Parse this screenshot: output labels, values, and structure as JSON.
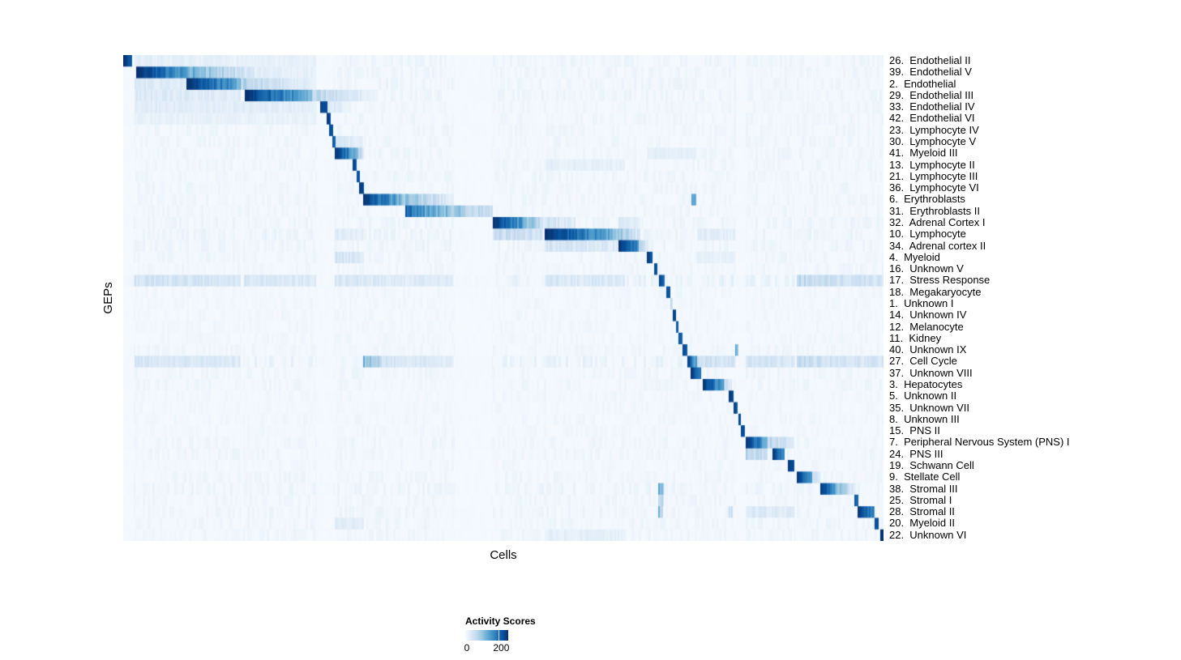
{
  "chart_data": {
    "type": "heatmap",
    "title": "",
    "xlabel": "Cells",
    "ylabel": "GEPs",
    "grid": false,
    "colorbar": {
      "title": "Activity Scores",
      "tick_labels": [
        "0",
        "200"
      ],
      "tick_values": [
        0,
        200
      ],
      "value_range": [
        0,
        250
      ],
      "position": "bottom-left"
    },
    "colormap_name": "Blues",
    "colormap_stops": [
      "#f7fbff",
      "#deebf7",
      "#c6dbef",
      "#9ecae1",
      "#6baed6",
      "#4292c6",
      "#2171b5",
      "#08519c",
      "#08306b"
    ],
    "noise_bands": [
      [
        0.014,
        0.085
      ],
      [
        0.085,
        0.154
      ],
      [
        0.158,
        0.254
      ],
      [
        0.278,
        0.316
      ],
      [
        0.316,
        0.435
      ],
      [
        0.486,
        0.554
      ],
      [
        0.554,
        0.66
      ],
      [
        0.652,
        0.691
      ],
      [
        0.69,
        0.755
      ],
      [
        0.755,
        0.805
      ],
      [
        0.819,
        0.883
      ],
      [
        0.886,
        0.964
      ],
      [
        0.964,
        1.0
      ]
    ],
    "rows": [
      {
        "label": "26.  Endothelial II",
        "noise": 0.06,
        "segments": [
          [
            0.0,
            0.011,
            1.0,
            0.8
          ],
          [
            0.014,
            0.254,
            0.08,
            0.06
          ]
        ]
      },
      {
        "label": "39.  Endothelial V",
        "noise": 0.06,
        "segments": [
          [
            0.017,
            0.085,
            1.0,
            0.55
          ],
          [
            0.085,
            0.171,
            0.5,
            0.12
          ],
          [
            0.171,
            0.254,
            0.1,
            0.07
          ]
        ]
      },
      {
        "label": "2.  Endothelial",
        "noise": 0.06,
        "segments": [
          [
            0.014,
            0.083,
            0.13,
            0.11
          ],
          [
            0.083,
            0.154,
            1.0,
            0.5
          ],
          [
            0.154,
            0.254,
            0.3,
            0.07
          ]
        ]
      },
      {
        "label": "29.  Endothelial III",
        "noise": 0.06,
        "segments": [
          [
            0.014,
            0.154,
            0.12,
            0.1
          ],
          [
            0.16,
            0.248,
            1.0,
            0.45
          ],
          [
            0.248,
            0.332,
            0.28,
            0.05
          ]
        ]
      },
      {
        "label": "33.  Endothelial IV",
        "noise": 0.05,
        "segments": [
          [
            0.014,
            0.254,
            0.1,
            0.09
          ],
          [
            0.259,
            0.268,
            0.95,
            0.85
          ],
          [
            0.268,
            0.3,
            0.15,
            0.05
          ]
        ]
      },
      {
        "label": "42.  Endothelial VI",
        "noise": 0.05,
        "segments": [
          [
            0.014,
            0.254,
            0.07,
            0.06
          ],
          [
            0.267,
            0.273,
            0.95,
            0.9
          ]
        ]
      },
      {
        "label": "23.  Lymphocyte IV",
        "noise": 0.05,
        "segments": [
          [
            0.271,
            0.276,
            0.9,
            0.85
          ]
        ]
      },
      {
        "label": "30.  Lymphocyte V",
        "noise": 0.05,
        "segments": [
          [
            0.275,
            0.279,
            0.85,
            0.8
          ],
          [
            0.279,
            0.315,
            0.15,
            0.08
          ]
        ]
      },
      {
        "label": "41.  Myeloid III",
        "noise": 0.05,
        "segments": [
          [
            0.278,
            0.304,
            1.0,
            0.55
          ],
          [
            0.304,
            0.316,
            0.5,
            0.12
          ],
          [
            0.69,
            0.755,
            0.09,
            0.07
          ]
        ]
      },
      {
        "label": "13.  Lymphocyte II",
        "noise": 0.05,
        "segments": [
          [
            0.302,
            0.307,
            0.9,
            0.85
          ],
          [
            0.554,
            0.66,
            0.08,
            0.07
          ]
        ]
      },
      {
        "label": "21.  Lymphocyte III",
        "noise": 0.05,
        "segments": [
          [
            0.307,
            0.311,
            0.9,
            0.85
          ]
        ]
      },
      {
        "label": "36.  Lymphocyte VI",
        "noise": 0.05,
        "segments": [
          [
            0.31,
            0.316,
            0.95,
            0.9
          ]
        ]
      },
      {
        "label": "6.  Erythroblasts",
        "noise": 0.05,
        "segments": [
          [
            0.315,
            0.362,
            1.0,
            0.5
          ],
          [
            0.362,
            0.435,
            0.45,
            0.08
          ],
          [
            0.748,
            0.754,
            0.55,
            0.5
          ]
        ]
      },
      {
        "label": "31.  Erythroblasts II",
        "noise": 0.05,
        "segments": [
          [
            0.371,
            0.39,
            0.8,
            0.65
          ],
          [
            0.39,
            0.486,
            0.6,
            0.18
          ]
        ]
      },
      {
        "label": "32.  Adrenal Cortex I",
        "noise": 0.06,
        "segments": [
          [
            0.486,
            0.526,
            1.0,
            0.55
          ],
          [
            0.526,
            0.554,
            0.5,
            0.15
          ],
          [
            0.554,
            0.595,
            0.18,
            0.1
          ],
          [
            0.652,
            0.68,
            0.12,
            0.08
          ]
        ]
      },
      {
        "label": "10.  Lymphocyte",
        "noise": 0.07,
        "segments": [
          [
            0.278,
            0.316,
            0.1,
            0.08
          ],
          [
            0.486,
            0.552,
            0.22,
            0.18
          ],
          [
            0.554,
            0.643,
            1.0,
            0.5
          ],
          [
            0.643,
            0.68,
            0.45,
            0.12
          ],
          [
            0.755,
            0.805,
            0.1,
            0.08
          ]
        ]
      },
      {
        "label": "34.  Adrenal cortex II",
        "noise": 0.06,
        "segments": [
          [
            0.554,
            0.65,
            0.16,
            0.12
          ],
          [
            0.652,
            0.678,
            1.0,
            0.6
          ],
          [
            0.678,
            0.691,
            0.4,
            0.1
          ]
        ]
      },
      {
        "label": "4.  Myeloid",
        "noise": 0.05,
        "segments": [
          [
            0.278,
            0.316,
            0.18,
            0.12
          ],
          [
            0.689,
            0.696,
            0.95,
            0.85
          ],
          [
            0.755,
            0.805,
            0.08,
            0.06
          ]
        ]
      },
      {
        "label": "16.  Unknown V",
        "noise": 0.05,
        "segments": [
          [
            0.698,
            0.703,
            0.9,
            0.85
          ]
        ]
      },
      {
        "label": "17.  Stress Response",
        "noise": 0.1,
        "segments": [
          [
            0.014,
            0.154,
            0.18,
            0.15
          ],
          [
            0.158,
            0.254,
            0.14,
            0.12
          ],
          [
            0.278,
            0.316,
            0.15,
            0.12
          ],
          [
            0.315,
            0.435,
            0.12,
            0.1
          ],
          [
            0.554,
            0.66,
            0.14,
            0.12
          ],
          [
            0.705,
            0.712,
            0.95,
            0.75
          ],
          [
            0.886,
            0.964,
            0.25,
            0.18
          ],
          [
            0.964,
            1.0,
            0.18,
            0.15
          ]
        ]
      },
      {
        "label": "18.  Megakaryocyte",
        "noise": 0.04,
        "segments": [
          [
            0.714,
            0.72,
            0.9,
            0.85
          ]
        ]
      },
      {
        "label": "1.  Unknown I",
        "noise": 0.04,
        "segments": [
          [
            0.72,
            0.723,
            0.3,
            0.2
          ]
        ]
      },
      {
        "label": "14.  Unknown IV",
        "noise": 0.04,
        "segments": [
          [
            0.723,
            0.727,
            0.9,
            0.85
          ]
        ]
      },
      {
        "label": "12.  Melanocyte",
        "noise": 0.04,
        "segments": [
          [
            0.727,
            0.731,
            0.85,
            0.8
          ]
        ]
      },
      {
        "label": "11.  Kidney",
        "noise": 0.04,
        "segments": [
          [
            0.731,
            0.736,
            0.85,
            0.8
          ]
        ]
      },
      {
        "label": "40.  Unknown IX",
        "noise": 0.05,
        "segments": [
          [
            0.736,
            0.742,
            0.95,
            0.7
          ],
          [
            0.805,
            0.81,
            0.5,
            0.4
          ]
        ]
      },
      {
        "label": "27.  Cell Cycle",
        "noise": 0.09,
        "segments": [
          [
            0.014,
            0.154,
            0.15,
            0.12
          ],
          [
            0.315,
            0.34,
            0.45,
            0.25
          ],
          [
            0.34,
            0.435,
            0.15,
            0.1
          ],
          [
            0.742,
            0.755,
            1.0,
            0.45
          ],
          [
            0.755,
            0.805,
            0.2,
            0.15
          ],
          [
            0.819,
            0.883,
            0.18,
            0.14
          ],
          [
            0.886,
            0.964,
            0.22,
            0.16
          ],
          [
            0.964,
            1.0,
            0.18,
            0.14
          ]
        ]
      },
      {
        "label": "37.  Unknown VIII",
        "noise": 0.05,
        "segments": [
          [
            0.747,
            0.76,
            1.0,
            0.7
          ]
        ]
      },
      {
        "label": "3.  Hepatocytes",
        "noise": 0.05,
        "segments": [
          [
            0.763,
            0.79,
            1.0,
            0.5
          ],
          [
            0.79,
            0.801,
            0.3,
            0.1
          ]
        ]
      },
      {
        "label": "5.  Unknown II",
        "noise": 0.04,
        "segments": [
          [
            0.797,
            0.803,
            0.95,
            0.85
          ]
        ]
      },
      {
        "label": "35.  Unknown VII",
        "noise": 0.04,
        "segments": [
          [
            0.803,
            0.808,
            0.9,
            0.85
          ]
        ]
      },
      {
        "label": "8.  Unknown III",
        "noise": 0.04,
        "segments": [
          [
            0.81,
            0.813,
            0.9,
            0.85
          ]
        ]
      },
      {
        "label": "15.  PNS II",
        "noise": 0.04,
        "segments": [
          [
            0.813,
            0.818,
            0.9,
            0.85
          ]
        ]
      },
      {
        "label": "7.  Peripheral Nervous System (PNS) I",
        "noise": 0.05,
        "segments": [
          [
            0.819,
            0.848,
            1.0,
            0.5
          ],
          [
            0.848,
            0.883,
            0.3,
            0.15
          ]
        ]
      },
      {
        "label": "24.  PNS III",
        "noise": 0.05,
        "segments": [
          [
            0.819,
            0.848,
            0.3,
            0.2
          ],
          [
            0.854,
            0.87,
            1.0,
            0.6
          ]
        ]
      },
      {
        "label": "19.  Schwann Cell",
        "noise": 0.04,
        "segments": [
          [
            0.875,
            0.883,
            0.95,
            0.85
          ]
        ]
      },
      {
        "label": "9.  Stellate Cell",
        "noise": 0.05,
        "segments": [
          [
            0.886,
            0.907,
            1.0,
            0.55
          ],
          [
            0.907,
            0.917,
            0.3,
            0.1
          ]
        ]
      },
      {
        "label": "38.  Stromal III",
        "noise": 0.06,
        "segments": [
          [
            0.704,
            0.711,
            0.45,
            0.4
          ],
          [
            0.917,
            0.933,
            1.0,
            0.7
          ],
          [
            0.933,
            0.957,
            0.6,
            0.2
          ],
          [
            0.957,
            0.964,
            0.15,
            0.1
          ]
        ]
      },
      {
        "label": "25.  Stromal I",
        "noise": 0.05,
        "segments": [
          [
            0.704,
            0.711,
            0.3,
            0.25
          ],
          [
            0.962,
            0.967,
            0.9,
            0.8
          ]
        ]
      },
      {
        "label": "28.  Stromal II",
        "noise": 0.06,
        "segments": [
          [
            0.704,
            0.71,
            0.4,
            0.35
          ],
          [
            0.797,
            0.802,
            0.2,
            0.18
          ],
          [
            0.819,
            0.883,
            0.12,
            0.1
          ],
          [
            0.966,
            0.989,
            1.0,
            0.6
          ]
        ]
      },
      {
        "label": "20.  Myeloid II",
        "noise": 0.05,
        "segments": [
          [
            0.278,
            0.316,
            0.1,
            0.08
          ],
          [
            0.989,
            0.994,
            0.9,
            0.85
          ]
        ]
      },
      {
        "label": "22.  Unknown VI",
        "noise": 0.05,
        "segments": [
          [
            0.554,
            0.66,
            0.08,
            0.07
          ],
          [
            0.996,
            1.0,
            1.0,
            0.95
          ]
        ]
      }
    ]
  }
}
